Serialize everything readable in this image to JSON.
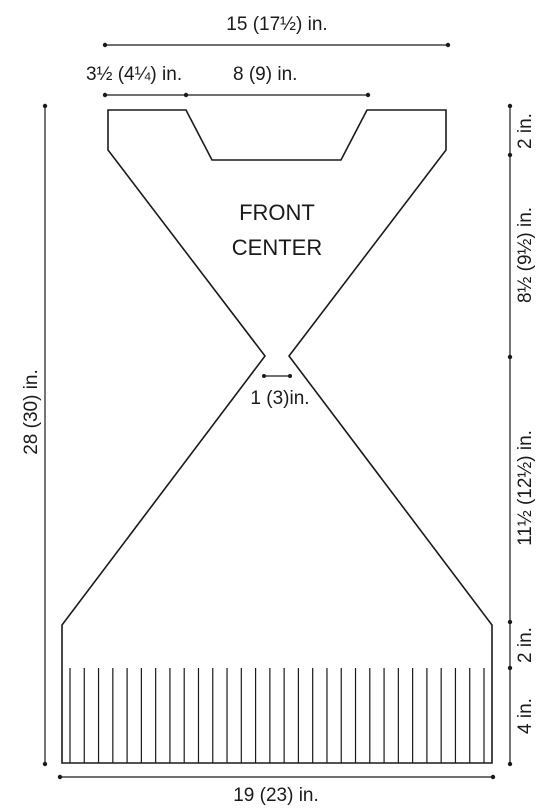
{
  "diagram": {
    "piece_label": {
      "line1": "FRONT",
      "line2": "CENTER"
    },
    "dimensions": {
      "total_width_top": "15 (17½) in.",
      "shoulder_width": "3½ (4¼) in.",
      "neck_width": "8 (9) in.",
      "waist_gap": "1 (3)in.",
      "bottom_width": "19 (23) in.",
      "total_length": "28 (30) in.",
      "neck_depth": "2 in.",
      "upper_taper": "8½ (9½) in.",
      "lower_taper": "11½ (12½) in.",
      "hem_band": "2 in.",
      "fringe_length": "4 in."
    },
    "fringe_count": 30
  }
}
